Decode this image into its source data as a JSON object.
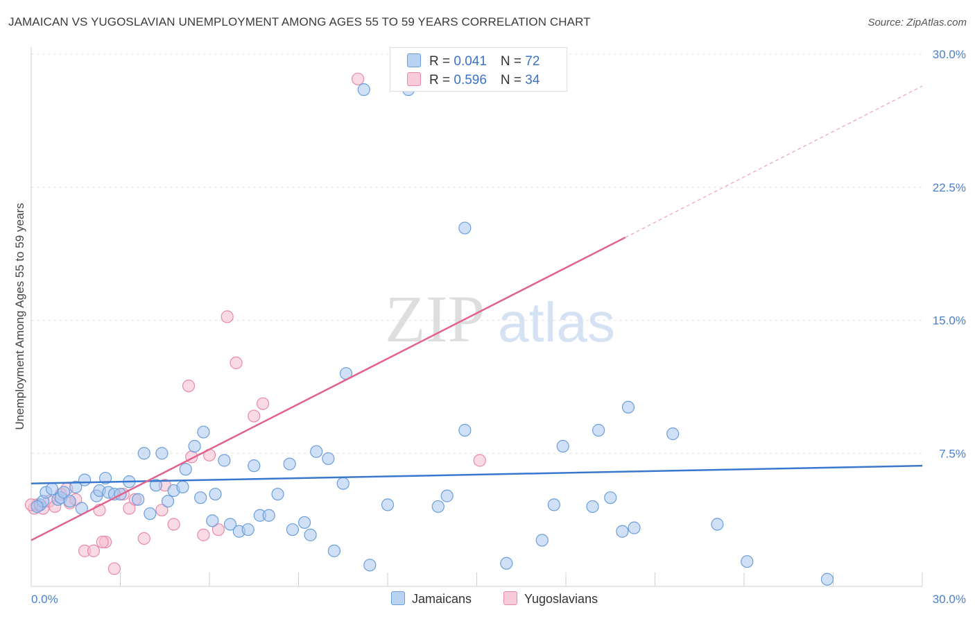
{
  "chart_data": {
    "type": "scatter",
    "title": "JAMAICAN VS YUGOSLAVIAN UNEMPLOYMENT AMONG AGES 55 TO 59 YEARS CORRELATION CHART",
    "source": "Source: ZipAtlas.com",
    "ylabel": "Unemployment Among Ages 55 to 59 years",
    "xlim": [
      0,
      30
    ],
    "ylim": [
      0,
      30
    ],
    "x_tick_labels": [
      "0.0%",
      "30.0%"
    ],
    "y_ticks": [
      7.5,
      15.0,
      22.5,
      30.0
    ],
    "y_tick_labels": [
      "7.5%",
      "15.0%",
      "22.5%",
      "30.0%"
    ],
    "watermark": {
      "zip": "ZIP",
      "atlas": "atlas"
    },
    "legend_stats": [
      {
        "r_label": "R = ",
        "r_value": "0.041",
        "n_label": "N = ",
        "n_value": "72"
      },
      {
        "r_label": "R = ",
        "r_value": "0.596",
        "n_label": "N = ",
        "n_value": "34"
      }
    ],
    "series": [
      {
        "name": "Jamaicans",
        "color": "#a9c7ee",
        "edge": "#6a9edb",
        "line_color": "#3a78d0",
        "trend": {
          "x": [
            0,
            30
          ],
          "y": [
            5.8,
            6.8
          ]
        },
        "points": [
          [
            0.3,
            4.6
          ],
          [
            0.4,
            4.8
          ],
          [
            0.5,
            5.3
          ],
          [
            0.7,
            5.5
          ],
          [
            0.9,
            4.9
          ],
          [
            1.0,
            5.0
          ],
          [
            1.1,
            5.3
          ],
          [
            1.3,
            4.8
          ],
          [
            1.5,
            5.6
          ],
          [
            1.7,
            4.4
          ],
          [
            1.8,
            6.0
          ],
          [
            2.2,
            5.1
          ],
          [
            2.3,
            5.4
          ],
          [
            2.5,
            6.1
          ],
          [
            2.6,
            5.3
          ],
          [
            2.8,
            5.2
          ],
          [
            3.3,
            5.9
          ],
          [
            3.0,
            5.2
          ],
          [
            3.6,
            4.9
          ],
          [
            3.8,
            7.5
          ],
          [
            4.0,
            4.1
          ],
          [
            4.2,
            5.7
          ],
          [
            4.4,
            7.5
          ],
          [
            4.6,
            4.8
          ],
          [
            4.8,
            5.4
          ],
          [
            5.1,
            5.6
          ],
          [
            5.2,
            6.6
          ],
          [
            5.5,
            7.9
          ],
          [
            5.7,
            5.0
          ],
          [
            5.8,
            8.7
          ],
          [
            6.1,
            3.7
          ],
          [
            6.2,
            5.2
          ],
          [
            6.5,
            7.1
          ],
          [
            6.7,
            3.5
          ],
          [
            7.0,
            3.1
          ],
          [
            7.3,
            3.2
          ],
          [
            7.5,
            6.8
          ],
          [
            7.7,
            4.0
          ],
          [
            8.0,
            4.0
          ],
          [
            8.3,
            5.2
          ],
          [
            8.7,
            6.9
          ],
          [
            8.8,
            3.2
          ],
          [
            9.2,
            3.6
          ],
          [
            9.4,
            2.9
          ],
          [
            9.6,
            7.6
          ],
          [
            10.0,
            7.2
          ],
          [
            10.2,
            2.0
          ],
          [
            10.5,
            5.8
          ],
          [
            10.6,
            12.0
          ],
          [
            11.2,
            28.0
          ],
          [
            11.4,
            1.2
          ],
          [
            12.0,
            4.6
          ],
          [
            12.7,
            28.0
          ],
          [
            13.7,
            4.5
          ],
          [
            14.0,
            5.1
          ],
          [
            14.6,
            20.2
          ],
          [
            14.6,
            8.8
          ],
          [
            16.0,
            1.3
          ],
          [
            17.2,
            2.6
          ],
          [
            17.6,
            4.6
          ],
          [
            17.9,
            7.9
          ],
          [
            18.9,
            4.5
          ],
          [
            19.1,
            8.8
          ],
          [
            19.5,
            5.0
          ],
          [
            19.9,
            3.1
          ],
          [
            20.1,
            10.1
          ],
          [
            20.3,
            3.3
          ],
          [
            21.6,
            8.6
          ],
          [
            23.1,
            3.5
          ],
          [
            24.1,
            1.4
          ],
          [
            26.8,
            0.4
          ],
          [
            0.2,
            4.5
          ]
        ]
      },
      {
        "name": "Yugoslavians",
        "color": "#f6bcd0",
        "edge": "#e88aa8",
        "line_color": "#e0628d",
        "trend": {
          "x": [
            0,
            30
          ],
          "y": [
            2.6,
            28.2
          ],
          "solid_until": 20.0
        },
        "points": [
          [
            0.1,
            4.4
          ],
          [
            0.2,
            4.6
          ],
          [
            0.4,
            4.4
          ],
          [
            0.6,
            4.8
          ],
          [
            0.8,
            4.5
          ],
          [
            1.0,
            5.2
          ],
          [
            1.2,
            5.5
          ],
          [
            1.3,
            4.7
          ],
          [
            1.5,
            4.9
          ],
          [
            1.8,
            2.0
          ],
          [
            2.1,
            2.0
          ],
          [
            2.3,
            4.3
          ],
          [
            2.5,
            2.5
          ],
          [
            2.8,
            1.0
          ],
          [
            3.1,
            5.2
          ],
          [
            3.3,
            4.4
          ],
          [
            3.5,
            4.9
          ],
          [
            3.8,
            2.7
          ],
          [
            4.5,
            5.7
          ],
          [
            4.8,
            3.5
          ],
          [
            5.3,
            11.3
          ],
          [
            5.4,
            7.3
          ],
          [
            5.8,
            2.9
          ],
          [
            6.0,
            7.4
          ],
          [
            6.3,
            3.2
          ],
          [
            6.6,
            15.2
          ],
          [
            6.9,
            12.6
          ],
          [
            7.5,
            9.6
          ],
          [
            7.8,
            10.3
          ],
          [
            11.0,
            28.6
          ],
          [
            15.1,
            7.1
          ],
          [
            4.4,
            4.3
          ],
          [
            2.4,
            2.5
          ],
          [
            0.0,
            4.6
          ]
        ]
      }
    ]
  }
}
